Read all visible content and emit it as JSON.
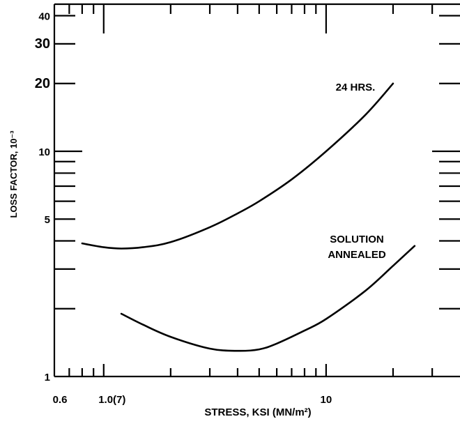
{
  "chart_data": {
    "type": "line",
    "title": "",
    "xlabel": "STRESS, KSI (MN/m²)",
    "ylabel": "LOSS FACTOR, 10⁻³",
    "x_scale": "log",
    "y_scale": "log",
    "xlim": [
      0.6,
      40
    ],
    "ylim": [
      1,
      45
    ],
    "grid": false,
    "x_tick_labels": [
      {
        "value": 0.6,
        "label": "0.6"
      },
      {
        "value": 1.0,
        "label": "1.0(7)"
      },
      {
        "value": 10,
        "label": "10"
      }
    ],
    "y_tick_labels": [
      {
        "value": 1,
        "label": "1"
      },
      {
        "value": 5,
        "label": "5"
      },
      {
        "value": 10,
        "label": "10"
      },
      {
        "value": 20,
        "label": "20"
      },
      {
        "value": 30,
        "label": "30"
      },
      {
        "value": 40,
        "label": "40"
      }
    ],
    "series": [
      {
        "name": "24 HRS.",
        "x": [
          0.8,
          1.0,
          1.2,
          1.5,
          2.0,
          3.0,
          4.0,
          5.0,
          7.0,
          10,
          15,
          20
        ],
        "y": [
          3.9,
          3.75,
          3.7,
          3.75,
          3.95,
          4.6,
          5.3,
          6.0,
          7.5,
          10,
          14.5,
          20
        ]
      },
      {
        "name": "SOLUTION ANNEALED",
        "x": [
          1.2,
          1.5,
          2.0,
          3.0,
          4.0,
          5.0,
          6.0,
          8.0,
          10,
          15,
          20,
          25
        ],
        "y": [
          1.9,
          1.7,
          1.5,
          1.33,
          1.3,
          1.32,
          1.4,
          1.6,
          1.8,
          2.4,
          3.1,
          3.8
        ]
      }
    ],
    "annotations": [
      {
        "text": "24 HRS.",
        "series": "24 HRS."
      },
      {
        "text": "SOLUTION",
        "series": "SOLUTION ANNEALED"
      },
      {
        "text": "ANNEALED",
        "series": "SOLUTION ANNEALED"
      }
    ]
  }
}
